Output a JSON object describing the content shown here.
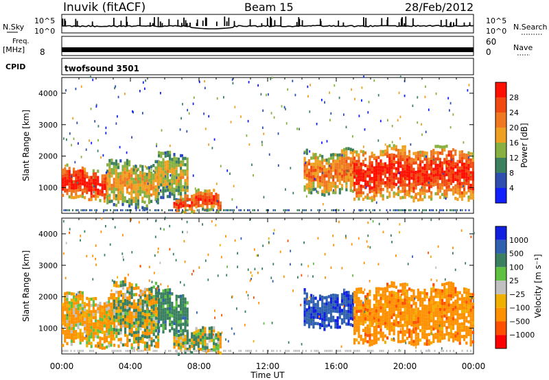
{
  "header": {
    "station": "Inuvik (fitACF)",
    "beam": "Beam 15",
    "date": "28/Feb/2012"
  },
  "strip_panels": {
    "nsky_label": "N.Sky",
    "nsky_ticks": [
      "10^5",
      "10^0"
    ],
    "nsearch_label": "N.Search",
    "nsearch_ticks": [
      "10^5",
      "10^0"
    ],
    "freq_label": "Freq.",
    "freq_unit": "[MHz]",
    "freq_tick": "8",
    "nave_label": "Nave",
    "nave_ticks": [
      "60",
      "0"
    ],
    "cpid_label": "CPID",
    "cpid_value": "twofsound 3501"
  },
  "colors": {
    "power": [
      "#1020ff",
      "#2f4fb0",
      "#3c8060",
      "#88b040",
      "#f0a020",
      "#f07820",
      "#f04a10",
      "#ff1000"
    ],
    "velocity": [
      "#ff0000",
      "#ff5000",
      "#ff9000",
      "#f0b000",
      "#c0c0c0",
      "#60c040",
      "#3a8060",
      "#3060b0",
      "#1020e0"
    ],
    "ground_scatter": "#c0c0c0"
  },
  "chart_data": [
    {
      "type": "heatmap",
      "ylabel": "Slant Range [km]",
      "xlabel": "Time UT",
      "x_ticks": [
        "00:00",
        "04:00",
        "08:00",
        "12:00",
        "16:00",
        "20:00",
        "00:00"
      ],
      "y_ticks": [
        "1000",
        "2000",
        "3000",
        "4000"
      ],
      "y_range_km": [
        180,
        4500
      ],
      "x_range_hours": [
        0,
        24
      ],
      "colorbar": {
        "label": "Power [dB]",
        "ticks": [
          "4",
          "8",
          "12",
          "16",
          "20",
          "24",
          "28"
        ],
        "range": [
          0,
          32
        ]
      },
      "echo_regions": [
        {
          "t0": 0.0,
          "t1": 2.6,
          "r0": 600,
          "r1": 1550,
          "core": 30
        },
        {
          "t0": 2.6,
          "t1": 5.6,
          "r0": 350,
          "r1": 1750,
          "core": 18
        },
        {
          "t0": 5.6,
          "t1": 7.3,
          "r0": 600,
          "r1": 2050,
          "core": 16
        },
        {
          "t0": 6.5,
          "t1": 9.2,
          "r0": 200,
          "r1": 800,
          "core": 26
        },
        {
          "t0": 14.1,
          "t1": 17.0,
          "r0": 800,
          "r1": 2100,
          "core": 22
        },
        {
          "t0": 17.0,
          "t1": 24.0,
          "r0": 600,
          "r1": 2200,
          "core": 28
        }
      ]
    },
    {
      "type": "heatmap",
      "ylabel": "Slant Range [km]",
      "xlabel": "Time UT",
      "x_ticks": [
        "00:00",
        "04:00",
        "08:00",
        "12:00",
        "16:00",
        "20:00",
        "00:00"
      ],
      "y_ticks": [
        "1000",
        "2000",
        "3000",
        "4000"
      ],
      "y_range_km": [
        180,
        4500
      ],
      "x_range_hours": [
        0,
        24
      ],
      "colorbar": {
        "label": "Velocity [m s⁻¹]",
        "ticks": [
          "1000",
          "500",
          "100",
          "25",
          "−25",
          "−100",
          "−500",
          "−1000"
        ],
        "range": [
          -1200,
          1200
        ]
      },
      "echo_regions": [
        {
          "t0": 0.0,
          "t1": 3.0,
          "r0": 400,
          "r1": 2000,
          "core": -150
        },
        {
          "t0": 3.0,
          "t1": 5.6,
          "r0": 350,
          "r1": 2400,
          "core": 0
        },
        {
          "t0": 5.6,
          "t1": 7.3,
          "r0": 800,
          "r1": 2100,
          "core": 300
        },
        {
          "t0": 6.5,
          "t1": 9.2,
          "r0": 200,
          "r1": 900,
          "core": 60
        },
        {
          "t0": 14.1,
          "t1": 17.0,
          "r0": 1000,
          "r1": 2100,
          "core": 900
        },
        {
          "t0": 17.0,
          "t1": 24.0,
          "r0": 500,
          "r1": 2300,
          "core": -300
        }
      ]
    }
  ]
}
